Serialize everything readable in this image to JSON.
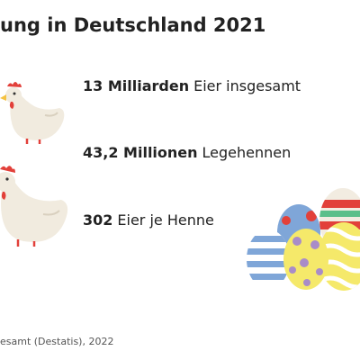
{
  "header": {
    "title": "ung in Deutschland 2021"
  },
  "facts": [
    {
      "figure": "13 Milliarden",
      "text": "Eier insgesamt"
    },
    {
      "figure": "43,2 Millionen",
      "text": "Legehennen"
    },
    {
      "figure": "302",
      "text": "Eier je Henne"
    }
  ],
  "footer": {
    "source": "esamt (Destatis), 2022"
  }
}
